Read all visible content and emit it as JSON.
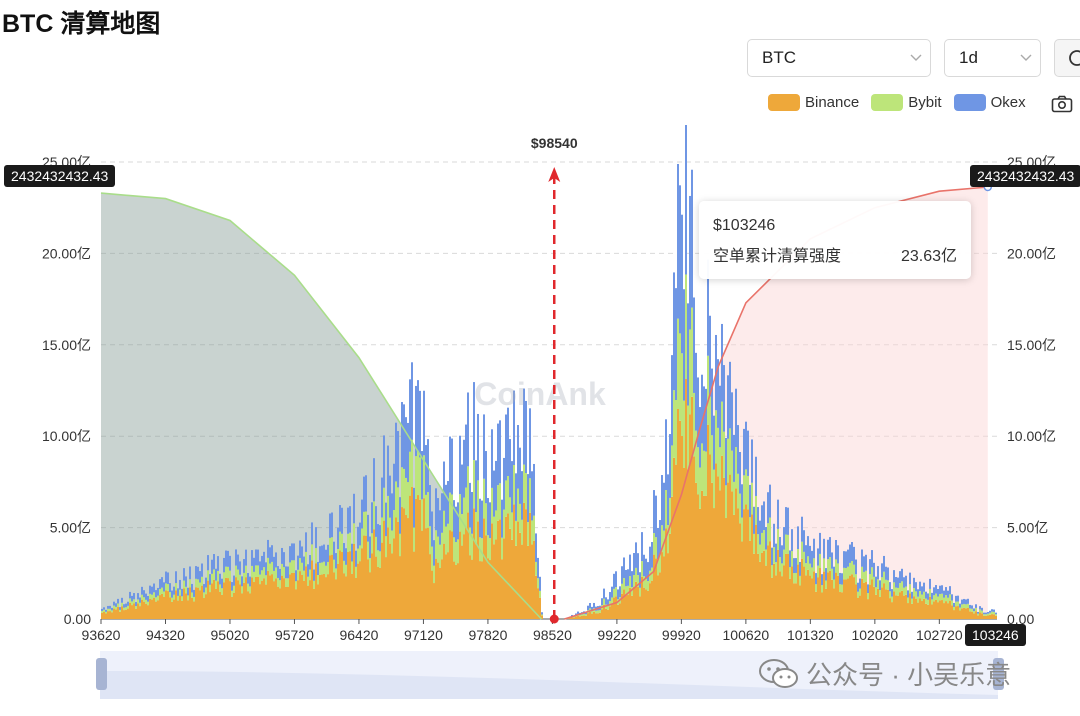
{
  "page_title": "BTC 清算地图",
  "controls": {
    "symbol_select": "BTC",
    "period_select": "1d"
  },
  "legend": [
    {
      "label": "Binance",
      "color": "#eea83a"
    },
    {
      "label": "Bybit",
      "color": "#bde57a"
    },
    {
      "label": "Okex",
      "color": "#6f96e4"
    }
  ],
  "icons": {
    "dropdown": "chevron-down-icon",
    "search": "search-icon",
    "screenshot": "camera-icon"
  },
  "watermark_text": "CoinAnk",
  "footer_credit": "公众号 · 小吴乐意",
  "chart_data": {
    "type": "bar",
    "y_ticks": [
      "0.00",
      "5.00亿",
      "10.00亿",
      "15.00亿",
      "20.00亿",
      "25.00亿"
    ],
    "y_unit": "亿",
    "ylim": [
      0,
      25
    ],
    "xlim": [
      93620,
      103346
    ],
    "x_ticks": [
      "93620",
      "94320",
      "95020",
      "95720",
      "96420",
      "97120",
      "97820",
      "98520",
      "99220",
      "99920",
      "100620",
      "101320",
      "102020",
      "102720"
    ],
    "current_price": 98540,
    "current_price_label": "$98540",
    "left_axis_tag": "2432432432.43",
    "right_axis_tag": "2432432432.43",
    "bottom_right_tag": "103246",
    "tooltip": {
      "price": "$103246",
      "label": "空单累计清算强度",
      "value": "23.63亿"
    },
    "bar_profile_x": [
      93620,
      94320,
      95020,
      95720,
      96420,
      96800,
      97020,
      97120,
      97200,
      97400,
      97650,
      97820,
      98000,
      98300,
      98400,
      98540,
      98650,
      99000,
      99300,
      99500,
      99620,
      99750,
      99850,
      99920,
      100050,
      100200,
      100400,
      100620,
      100900,
      101320,
      102020,
      102500,
      102720,
      103200
    ],
    "bar_profile_binance": [
      0.3,
      1.2,
      1.8,
      2.2,
      3.3,
      4.5,
      5.6,
      6.2,
      2.2,
      3.8,
      4.8,
      4.3,
      4.5,
      5.0,
      0.0,
      0.0,
      0.0,
      0.4,
      1.3,
      1.9,
      2.7,
      4.2,
      9.8,
      10.8,
      9.3,
      7.9,
      6.2,
      4.6,
      3.3,
      2.2,
      1.6,
      1.1,
      0.9,
      0.2
    ],
    "bar_profile_bybit": [
      0.1,
      0.3,
      0.5,
      0.6,
      0.9,
      1.6,
      2.0,
      2.2,
      1.1,
      1.6,
      2.1,
      1.6,
      1.6,
      1.6,
      0.0,
      0.0,
      0.0,
      0.2,
      0.5,
      0.7,
      0.9,
      1.8,
      4.1,
      4.9,
      3.6,
      2.8,
      2.0,
      1.4,
      1.0,
      0.6,
      0.5,
      0.4,
      0.3,
      0.1
    ],
    "bar_profile_okex": [
      0.1,
      0.5,
      0.7,
      0.8,
      1.3,
      2.6,
      3.3,
      3.3,
      1.6,
      2.4,
      3.4,
      2.6,
      2.9,
      3.3,
      0.0,
      0.0,
      0.0,
      0.3,
      0.9,
      1.3,
      1.8,
      3.3,
      7.1,
      8.2,
      5.4,
      3.9,
      2.9,
      1.9,
      1.4,
      0.9,
      0.7,
      0.5,
      0.4,
      0.1
    ],
    "long_cumulative": {
      "x": [
        93620,
        94320,
        95020,
        95720,
        96420,
        97120,
        97820,
        98400
      ],
      "y": [
        23.3,
        23.0,
        21.8,
        18.8,
        14.3,
        8.7,
        3.1,
        0.0
      ]
    },
    "short_cumulative": {
      "x": [
        98650,
        99220,
        99620,
        99920,
        100120,
        100320,
        100620,
        101320,
        102020,
        102720,
        103246
      ],
      "y": [
        0.0,
        0.9,
        2.6,
        6.8,
        10.4,
        13.8,
        17.3,
        20.8,
        22.5,
        23.4,
        23.63
      ]
    }
  }
}
